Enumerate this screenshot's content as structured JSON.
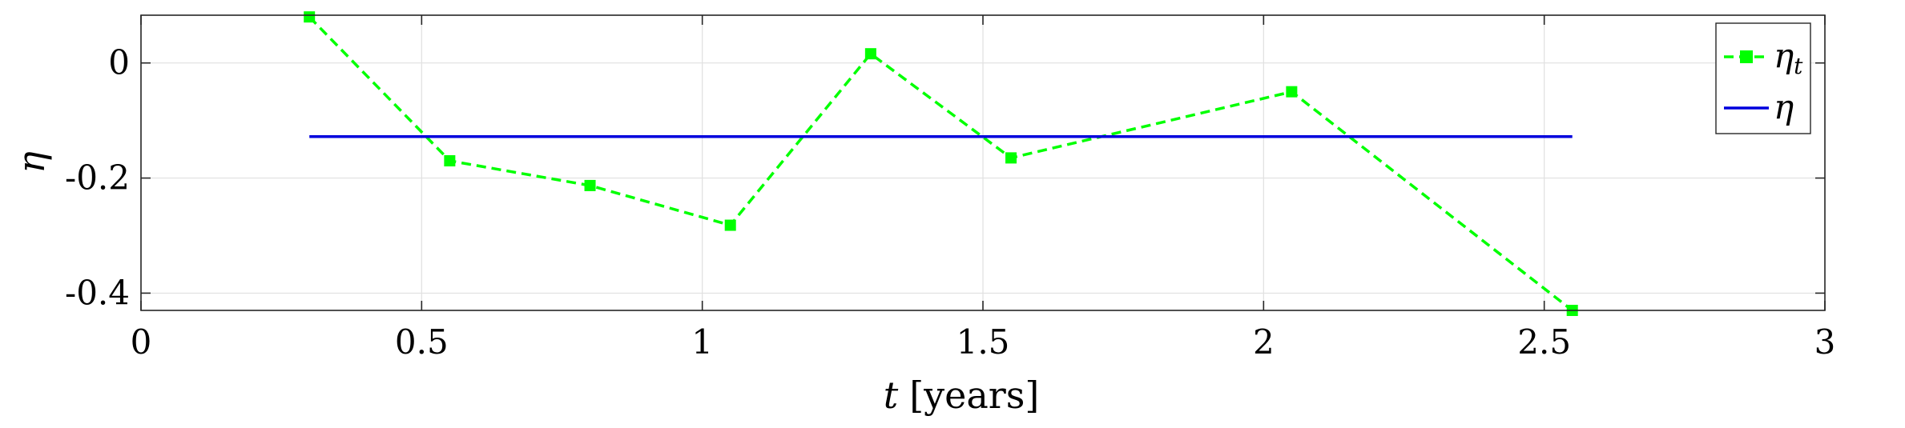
{
  "chart_data": {
    "type": "line",
    "xlabel_var": "t",
    "xlabel_unit": "[years]",
    "ylabel": "η",
    "xlim": [
      0,
      3
    ],
    "ylim": [
      -0.43,
      0.083
    ],
    "xticks": [
      0,
      0.5,
      1,
      1.5,
      2,
      2.5,
      3
    ],
    "xtick_labels": [
      "0",
      "0.5",
      "1",
      "1.5",
      "2",
      "2.5",
      "3"
    ],
    "yticks": [
      0,
      -0.2,
      -0.4
    ],
    "ytick_labels": [
      "0",
      "-0.2",
      "-0.4"
    ],
    "grid": true,
    "legend_position": "top-right",
    "series": [
      {
        "name": "η",
        "name_sub": "t",
        "style": "dashed-square-markers",
        "color": "#00ff00",
        "x": [
          0.3,
          0.55,
          0.8,
          1.05,
          1.3,
          1.55,
          2.05,
          2.55
        ],
        "y": [
          0.08,
          -0.17,
          -0.213,
          -0.282,
          0.016,
          -0.165,
          -0.05,
          -0.43
        ]
      },
      {
        "name": "η",
        "style": "solid",
        "color": "#0000dd",
        "x": [
          0.3,
          2.55
        ],
        "y": [
          -0.128,
          -0.128
        ]
      }
    ]
  }
}
